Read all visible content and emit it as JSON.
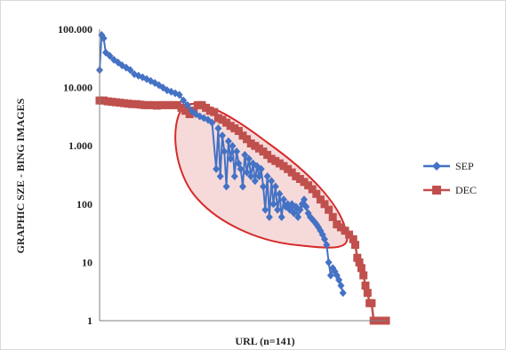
{
  "chart_data": {
    "type": "line",
    "title": "",
    "xlabel": "URL (n=141)",
    "ylabel": "GRAPHIC SZE - BING IMAGES",
    "yscale": "log",
    "ylim": [
      1,
      100000
    ],
    "yticks": [
      {
        "value": 1,
        "label": "1"
      },
      {
        "value": 10,
        "label": "10"
      },
      {
        "value": 100,
        "label": "100"
      },
      {
        "value": 1000,
        "label": "1.000"
      },
      {
        "value": 10000,
        "label": "10.000"
      },
      {
        "value": 100000,
        "label": "100.000"
      }
    ],
    "xlim": [
      1,
      141
    ],
    "grid": false,
    "legend": "right",
    "series": [
      {
        "name": "SEP",
        "color": "#4472c4",
        "marker": "diamond",
        "points": [
          [
            1,
            20000
          ],
          [
            2,
            80000
          ],
          [
            3,
            70000
          ],
          [
            4,
            40000
          ],
          [
            6,
            35000
          ],
          [
            8,
            30000
          ],
          [
            10,
            27000
          ],
          [
            12,
            24000
          ],
          [
            14,
            22000
          ],
          [
            16,
            20000
          ],
          [
            18,
            17000
          ],
          [
            20,
            16000
          ],
          [
            22,
            15000
          ],
          [
            24,
            14000
          ],
          [
            26,
            13000
          ],
          [
            28,
            12000
          ],
          [
            30,
            11000
          ],
          [
            32,
            10000
          ],
          [
            34,
            9000
          ],
          [
            36,
            8500
          ],
          [
            38,
            8000
          ],
          [
            40,
            7500
          ],
          [
            42,
            6000
          ],
          [
            44,
            5000
          ],
          [
            46,
            4000
          ],
          [
            48,
            3500
          ],
          [
            50,
            3200
          ],
          [
            52,
            3000
          ],
          [
            54,
            2800
          ],
          [
            56,
            2500
          ],
          [
            58,
            400
          ],
          [
            59,
            2000
          ],
          [
            60,
            300
          ],
          [
            61,
            1500
          ],
          [
            62,
            800
          ],
          [
            63,
            200
          ],
          [
            64,
            1200
          ],
          [
            65,
            600
          ],
          [
            66,
            1000
          ],
          [
            67,
            300
          ],
          [
            68,
            800
          ],
          [
            69,
            500
          ],
          [
            70,
            400
          ],
          [
            71,
            200
          ],
          [
            72,
            700
          ],
          [
            73,
            350
          ],
          [
            74,
            600
          ],
          [
            75,
            300
          ],
          [
            76,
            500
          ],
          [
            77,
            250
          ],
          [
            78,
            450
          ],
          [
            79,
            300
          ],
          [
            80,
            400
          ],
          [
            81,
            200
          ],
          [
            82,
            80
          ],
          [
            83,
            300
          ],
          [
            84,
            60
          ],
          [
            85,
            250
          ],
          [
            86,
            100
          ],
          [
            87,
            200
          ],
          [
            88,
            80
          ],
          [
            89,
            150
          ],
          [
            90,
            60
          ],
          [
            91,
            120
          ],
          [
            92,
            90
          ],
          [
            93,
            100
          ],
          [
            94,
            80
          ],
          [
            95,
            100
          ],
          [
            96,
            70
          ],
          [
            97,
            90
          ],
          [
            98,
            60
          ],
          [
            99,
            80
          ],
          [
            100,
            100
          ],
          [
            101,
            120
          ],
          [
            102,
            90
          ],
          [
            103,
            70
          ],
          [
            104,
            60
          ],
          [
            105,
            55
          ],
          [
            106,
            50
          ],
          [
            107,
            45
          ],
          [
            108,
            40
          ],
          [
            109,
            35
          ],
          [
            110,
            30
          ],
          [
            111,
            25
          ],
          [
            112,
            20
          ],
          [
            113,
            10
          ],
          [
            114,
            6
          ],
          [
            115,
            8
          ],
          [
            116,
            7
          ],
          [
            117,
            6
          ],
          [
            118,
            5
          ],
          [
            119,
            4
          ],
          [
            120,
            3
          ]
        ]
      },
      {
        "name": "DEC",
        "color": "#c0504d",
        "marker": "square",
        "points": [
          [
            1,
            6000
          ],
          [
            3,
            6000
          ],
          [
            5,
            5800
          ],
          [
            7,
            5700
          ],
          [
            9,
            5600
          ],
          [
            11,
            5500
          ],
          [
            13,
            5400
          ],
          [
            15,
            5300
          ],
          [
            17,
            5200
          ],
          [
            19,
            5200
          ],
          [
            21,
            5100
          ],
          [
            23,
            5000
          ],
          [
            25,
            5000
          ],
          [
            27,
            5000
          ],
          [
            29,
            4900
          ],
          [
            31,
            5000
          ],
          [
            33,
            5000
          ],
          [
            35,
            5000
          ],
          [
            37,
            5000
          ],
          [
            39,
            5000
          ],
          [
            41,
            4500
          ],
          [
            43,
            4000
          ],
          [
            45,
            3500
          ],
          [
            47,
            4000
          ],
          [
            49,
            5000
          ],
          [
            51,
            5000
          ],
          [
            53,
            4500
          ],
          [
            55,
            4000
          ],
          [
            57,
            3800
          ],
          [
            59,
            3000
          ],
          [
            61,
            2800
          ],
          [
            63,
            2500
          ],
          [
            65,
            2200
          ],
          [
            67,
            2000
          ],
          [
            69,
            1800
          ],
          [
            71,
            1500
          ],
          [
            73,
            1300
          ],
          [
            75,
            1100
          ],
          [
            77,
            1000
          ],
          [
            79,
            900
          ],
          [
            81,
            800
          ],
          [
            83,
            700
          ],
          [
            85,
            600
          ],
          [
            87,
            550
          ],
          [
            89,
            500
          ],
          [
            91,
            450
          ],
          [
            93,
            400
          ],
          [
            95,
            350
          ],
          [
            97,
            300
          ],
          [
            99,
            270
          ],
          [
            101,
            240
          ],
          [
            103,
            210
          ],
          [
            105,
            180
          ],
          [
            107,
            150
          ],
          [
            109,
            120
          ],
          [
            111,
            100
          ],
          [
            113,
            80
          ],
          [
            115,
            60
          ],
          [
            117,
            45
          ],
          [
            119,
            40
          ],
          [
            121,
            35
          ],
          [
            123,
            30
          ],
          [
            125,
            25
          ],
          [
            126,
            20
          ],
          [
            127,
            12
          ],
          [
            128,
            10
          ],
          [
            129,
            8
          ],
          [
            130,
            6
          ],
          [
            131,
            4
          ],
          [
            132,
            3
          ],
          [
            133,
            2
          ],
          [
            134,
            2
          ],
          [
            135,
            1
          ],
          [
            136,
            1
          ],
          [
            137,
            1
          ],
          [
            138,
            1
          ],
          [
            139,
            1
          ],
          [
            140,
            1
          ],
          [
            141,
            1
          ]
        ]
      }
    ]
  }
}
